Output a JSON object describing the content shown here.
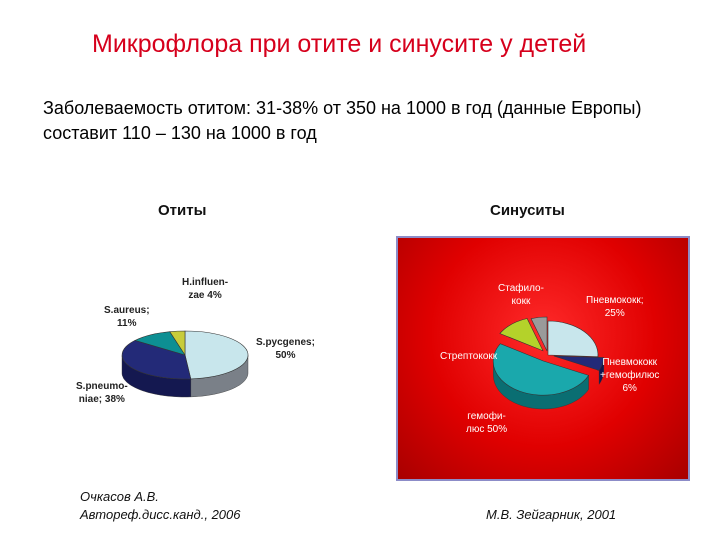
{
  "title": "Микрофлора при отите и синусите у детей",
  "subtitle": "Заболеваемость отитом: 31-38% от 350 на 1000 в год (данные Европы) составит 110 – 130 на 1000 в год",
  "chart_data": [
    {
      "type": "pie",
      "title": "Отиты",
      "categories": [
        "S.pycgenes;",
        "S.pneumo-niae;",
        "S.aureus;",
        "H.influen-zae"
      ],
      "values": [
        50,
        38,
        11,
        4
      ],
      "colors": [
        "#c8e6ec",
        "#232a78",
        "#0d8f93",
        "#c8cc3a"
      ],
      "side_colors": [
        "#7a8088",
        "#141850",
        "#086064",
        "#8a8c20"
      ],
      "labels": [
        {
          "lines": [
            "S.pycgenes;",
            "50%"
          ]
        },
        {
          "lines": [
            "S.pneumo-",
            "niae; 38%"
          ]
        },
        {
          "lines": [
            "S.aureus;",
            "11%"
          ]
        },
        {
          "lines": [
            "H.influen-",
            "zae 4%"
          ]
        }
      ],
      "source": [
        "Очкасов А.В.",
        "Автореф.дисс.канд., 2006"
      ]
    },
    {
      "type": "pie",
      "title": "Синуситы",
      "categories": [
        "Пневмококк",
        "Пневмококк +гемофилюс",
        "гемофилюс",
        "Стрептококк",
        "Стафилококк"
      ],
      "values": [
        25,
        6,
        50,
        11,
        5
      ],
      "colors": [
        "#c8e6ec",
        "#232a78",
        "#1aa8ac",
        "#b4d22a",
        "#9a9a9a"
      ],
      "side_colors": [
        "#8a9aa0",
        "#121650",
        "#0a6e72",
        "#6e8414",
        "#5a5a5a"
      ],
      "labels": [
        {
          "lines": [
            "Пневмококк;",
            "25%"
          ]
        },
        {
          "lines": [
            "Пневмококк",
            "+гемофилюс",
            "6%"
          ]
        },
        {
          "lines": [
            "гемофи-",
            "люс 50%"
          ]
        },
        {
          "lines": [
            "Стрептококк"
          ]
        },
        {
          "lines": [
            "Стафило-",
            "кокк"
          ]
        }
      ],
      "source": [
        "М.В. Зейгарник, 2001"
      ]
    }
  ]
}
